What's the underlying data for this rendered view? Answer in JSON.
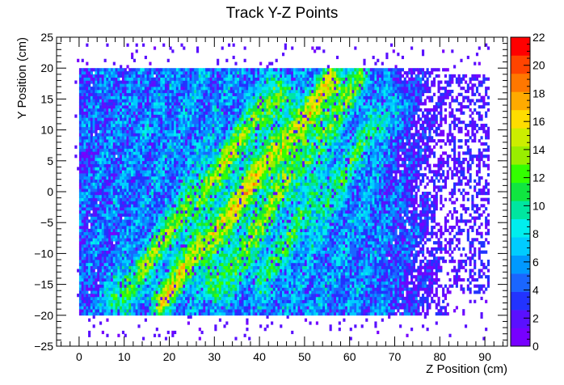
{
  "chart_data": {
    "type": "heatmap",
    "title": "Track Y-Z Points",
    "xlabel": "Z Position (cm)",
    "ylabel": "Y Position (cm)",
    "xlim": [
      -5,
      95
    ],
    "ylim": [
      -25,
      25
    ],
    "x_ticks": [
      0,
      10,
      20,
      30,
      40,
      50,
      60,
      70,
      80,
      90
    ],
    "y_ticks": [
      -25,
      -20,
      -15,
      -10,
      -5,
      0,
      5,
      10,
      15,
      20,
      25
    ],
    "color_scale": {
      "min": 0,
      "max": 22,
      "ticks": [
        0,
        2,
        4,
        6,
        8,
        10,
        12,
        14,
        16,
        18,
        20,
        22
      ],
      "colors": [
        "#7700ff",
        "#5a10ff",
        "#2233ff",
        "#1a66ff",
        "#0099ff",
        "#00ccff",
        "#00eeee",
        "#00e6a0",
        "#10e640",
        "#33ff00",
        "#99ee00",
        "#ccee00",
        "#ffdd00",
        "#ffaa00",
        "#ff7700",
        "#ff4400",
        "#ff0000"
      ]
    },
    "region": {
      "dense_z": [
        0,
        82
      ],
      "dense_y": [
        -20,
        20
      ],
      "sparse_z": [
        -1,
        91
      ],
      "sparse_y": [
        -24,
        24
      ],
      "bin_size": [
        0.5,
        0.5
      ]
    },
    "bands": [
      {
        "z0": 8,
        "y0": -18,
        "z1": 44,
        "y1": 16,
        "peak": 14
      },
      {
        "z0": 18,
        "y0": -18,
        "z1": 56,
        "y1": 18,
        "peak": 16
      },
      {
        "z0": 30,
        "y0": -16,
        "z1": 62,
        "y1": 18,
        "peak": 13
      },
      {
        "z0": 40,
        "y0": -14,
        "z1": 70,
        "y1": 14,
        "peak": 11
      }
    ]
  }
}
